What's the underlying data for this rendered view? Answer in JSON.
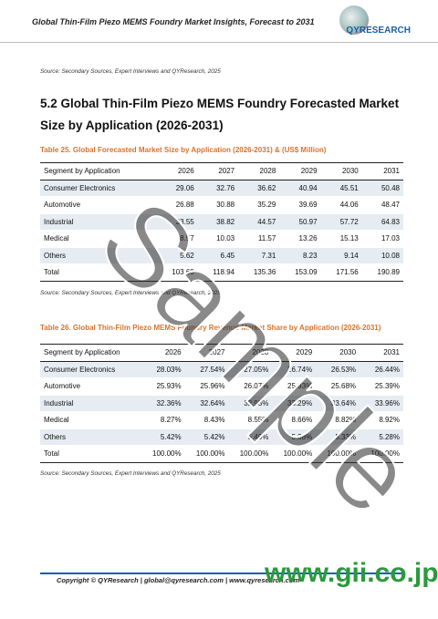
{
  "header": {
    "title": "Global Thin-Film Piezo MEMS Foundry Market Insights, Forecast to 2031",
    "logo": "QYRESEARCH"
  },
  "source_top": "Source: Secondary Sources, Expert Interviews and QYResearch, 2025",
  "section_heading": "5.2  Global Thin-Film Piezo MEMS Foundry Forecasted Market Size by Application (2026-2031)",
  "tables": [
    {
      "caption": "Table 25.   Global Forecasted Market Size by Application (2026-2031) & (US$ Million)",
      "columns": [
        "Segment by Application",
        "2026",
        "2027",
        "2028",
        "2029",
        "2030",
        "2031"
      ],
      "rows": [
        [
          "Consumer Electronics",
          "29.06",
          "32.76",
          "36.62",
          "40.94",
          "45.51",
          "50.48"
        ],
        [
          "Automotive",
          "26.88",
          "30.88",
          "35.29",
          "39.69",
          "44.06",
          "48.47"
        ],
        [
          "Industrial",
          "33.55",
          "38.82",
          "44.57",
          "50.97",
          "57.72",
          "64.83"
        ],
        [
          "Medical",
          "8.57",
          "10.03",
          "11.57",
          "13.26",
          "15.13",
          "17.03"
        ],
        [
          "Others",
          "5.62",
          "6.45",
          "7.31",
          "8.23",
          "9.14",
          "10.08"
        ],
        [
          "Total",
          "103.68",
          "118.94",
          "135.36",
          "153.09",
          "171.56",
          "190.89"
        ]
      ],
      "source": "Source: Secondary Sources, Expert Interviews and QYResearch, 2025"
    },
    {
      "caption": "Table 26.   Global Thin-Film Piezo MEMS Foundry Revenue Market Share by Application (2026-2031)",
      "columns": [
        "Segment by Application",
        "2026",
        "2027",
        "2028",
        "2029",
        "2030",
        "2031"
      ],
      "rows": [
        [
          "Consumer Electronics",
          "28.03%",
          "27.54%",
          "27.05%",
          "26.74%",
          "26.53%",
          "26.44%"
        ],
        [
          "Automotive",
          "25.93%",
          "25.96%",
          "26.07%",
          "25.93%",
          "25.68%",
          "25.39%"
        ],
        [
          "Industrial",
          "32.36%",
          "32.64%",
          "32.93%",
          "33.29%",
          "33.64%",
          "33.96%"
        ],
        [
          "Medical",
          "8.27%",
          "8.43%",
          "8.55%",
          "8.66%",
          "8.82%",
          "8.92%"
        ],
        [
          "Others",
          "5.42%",
          "5.42%",
          "5.40%",
          "5.38%",
          "5.33%",
          "5.28%"
        ],
        [
          "Total",
          "100.00%",
          "100.00%",
          "100.00%",
          "100.00%",
          "100.00%",
          "100.00%"
        ]
      ],
      "source": "Source: Secondary Sources, Expert Interviews and QYResearch, 2025"
    }
  ],
  "footer": {
    "copyright": "Copyright © QYResearch | global@qyresearch.com | www.qyresearch.com"
  },
  "watermark": "Sample",
  "gii": "www.gii.co.jp"
}
